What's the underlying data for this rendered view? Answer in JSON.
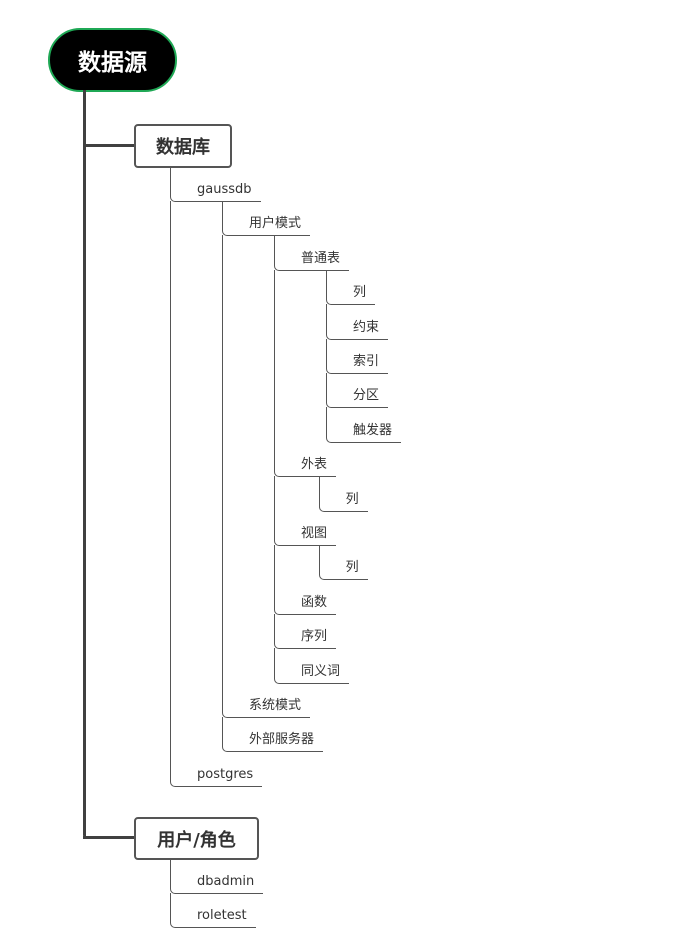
{
  "colors": {
    "root_fill": "#000000",
    "root_border": "#1fa855",
    "line": "#404040"
  },
  "root": {
    "label": "数据源"
  },
  "branches": [
    {
      "label": "数据库",
      "children": [
        {
          "label": "gaussdb",
          "children": [
            {
              "label": "用户模式",
              "children": [
                {
                  "label": "普通表",
                  "children": [
                    {
                      "label": "列"
                    },
                    {
                      "label": "约束"
                    },
                    {
                      "label": "索引"
                    },
                    {
                      "label": "分区"
                    },
                    {
                      "label": "触发器"
                    }
                  ]
                },
                {
                  "label": "外表",
                  "children": [
                    {
                      "label": "列"
                    }
                  ]
                },
                {
                  "label": "视图",
                  "children": [
                    {
                      "label": "列"
                    }
                  ]
                },
                {
                  "label": "函数"
                },
                {
                  "label": "序列"
                },
                {
                  "label": "同义词"
                }
              ]
            },
            {
              "label": "系统模式"
            },
            {
              "label": "外部服务器"
            }
          ]
        },
        {
          "label": "postgres"
        }
      ]
    },
    {
      "label": "用户/角色",
      "children": [
        {
          "label": "dbadmin"
        },
        {
          "label": "roletest"
        }
      ]
    }
  ]
}
